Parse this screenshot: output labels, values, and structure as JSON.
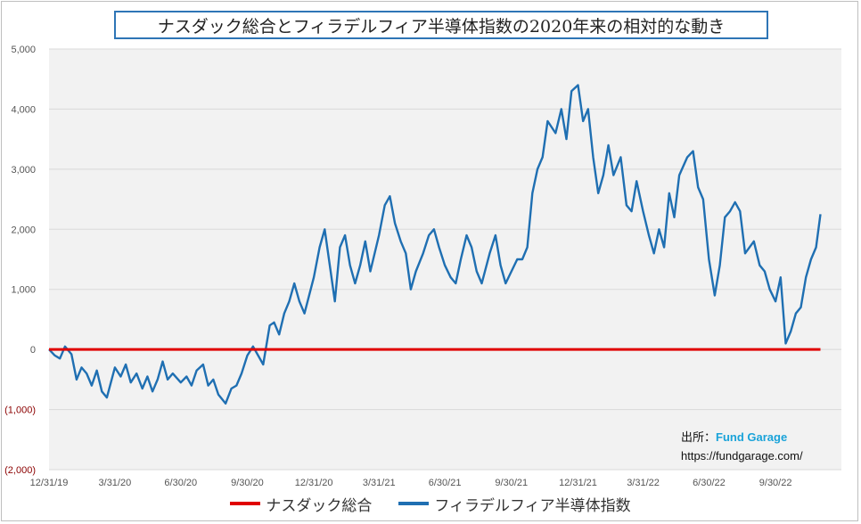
{
  "colors": {
    "nasdaq": "#e00000",
    "sox": "#1f6fb2",
    "plot_bg": "#f2f2f2",
    "grid": "#d9d9d9",
    "title_border": "#2e75b6"
  },
  "source": {
    "label": "出所：",
    "brand": "Fund Garage",
    "url": "https://fundgarage.com/"
  },
  "chart_data": {
    "type": "line",
    "title": "ナスダック総合とフィラデルフィア半導体指数の2020年来の相対的な動き",
    "xlabel": "",
    "ylabel": "",
    "ylim": [
      -2000,
      5000
    ],
    "y_ticks": [
      5000,
      4000,
      3000,
      2000,
      1000,
      0,
      -1000,
      -2000
    ],
    "y_tick_labels": [
      "5,000",
      "4,000",
      "3,000",
      "2,000",
      "1,000",
      "0",
      "(1,000)",
      "(2,000)"
    ],
    "x_tick_labels": [
      "12/31/19",
      "3/31/20",
      "6/30/20",
      "9/30/20",
      "12/31/20",
      "3/31/21",
      "6/30/21",
      "9/30/21",
      "12/31/21",
      "3/31/22",
      "6/30/22",
      "9/30/22"
    ],
    "xlim": [
      "2019-12-31",
      "2022-12-30"
    ],
    "legend": "bottom",
    "grid": true,
    "series": [
      {
        "name": "ナスダック総合",
        "points": [
          [
            "2019-12-31",
            0
          ],
          [
            "2022-12-01",
            0
          ]
        ]
      },
      {
        "name": "フィラデルフィア半導体指数",
        "points": [
          [
            "2019-12-31",
            0
          ],
          [
            "2020-01-08",
            -100
          ],
          [
            "2020-01-15",
            -150
          ],
          [
            "2020-01-22",
            50
          ],
          [
            "2020-01-31",
            -80
          ],
          [
            "2020-02-07",
            -500
          ],
          [
            "2020-02-14",
            -300
          ],
          [
            "2020-02-21",
            -400
          ],
          [
            "2020-02-28",
            -600
          ],
          [
            "2020-03-06",
            -350
          ],
          [
            "2020-03-13",
            -700
          ],
          [
            "2020-03-20",
            -800
          ],
          [
            "2020-03-31",
            -300
          ],
          [
            "2020-04-08",
            -450
          ],
          [
            "2020-04-15",
            -250
          ],
          [
            "2020-04-22",
            -550
          ],
          [
            "2020-04-30",
            -400
          ],
          [
            "2020-05-08",
            -650
          ],
          [
            "2020-05-15",
            -450
          ],
          [
            "2020-05-22",
            -700
          ],
          [
            "2020-05-29",
            -500
          ],
          [
            "2020-06-05",
            -200
          ],
          [
            "2020-06-12",
            -500
          ],
          [
            "2020-06-19",
            -400
          ],
          [
            "2020-06-30",
            -550
          ],
          [
            "2020-07-08",
            -450
          ],
          [
            "2020-07-15",
            -600
          ],
          [
            "2020-07-22",
            -350
          ],
          [
            "2020-07-31",
            -250
          ],
          [
            "2020-08-07",
            -600
          ],
          [
            "2020-08-14",
            -500
          ],
          [
            "2020-08-21",
            -750
          ],
          [
            "2020-08-31",
            -900
          ],
          [
            "2020-09-08",
            -650
          ],
          [
            "2020-09-15",
            -600
          ],
          [
            "2020-09-22",
            -400
          ],
          [
            "2020-09-30",
            -100
          ],
          [
            "2020-10-08",
            50
          ],
          [
            "2020-10-15",
            -100
          ],
          [
            "2020-10-22",
            -250
          ],
          [
            "2020-10-31",
            400
          ],
          [
            "2020-11-06",
            450
          ],
          [
            "2020-11-13",
            250
          ],
          [
            "2020-11-20",
            600
          ],
          [
            "2020-11-27",
            800
          ],
          [
            "2020-12-04",
            1100
          ],
          [
            "2020-12-11",
            800
          ],
          [
            "2020-12-18",
            600
          ],
          [
            "2020-12-31",
            1200
          ],
          [
            "2021-01-08",
            1700
          ],
          [
            "2021-01-15",
            2000
          ],
          [
            "2021-01-22",
            1400
          ],
          [
            "2021-01-29",
            800
          ],
          [
            "2021-02-05",
            1700
          ],
          [
            "2021-02-12",
            1900
          ],
          [
            "2021-02-19",
            1400
          ],
          [
            "2021-02-26",
            1100
          ],
          [
            "2021-03-05",
            1400
          ],
          [
            "2021-03-12",
            1800
          ],
          [
            "2021-03-19",
            1300
          ],
          [
            "2021-03-31",
            1900
          ],
          [
            "2021-04-08",
            2400
          ],
          [
            "2021-04-15",
            2550
          ],
          [
            "2021-04-22",
            2100
          ],
          [
            "2021-04-30",
            1800
          ],
          [
            "2021-05-07",
            1600
          ],
          [
            "2021-05-14",
            1000
          ],
          [
            "2021-05-21",
            1300
          ],
          [
            "2021-05-31",
            1600
          ],
          [
            "2021-06-08",
            1900
          ],
          [
            "2021-06-15",
            2000
          ],
          [
            "2021-06-22",
            1700
          ],
          [
            "2021-06-30",
            1400
          ],
          [
            "2021-07-08",
            1200
          ],
          [
            "2021-07-15",
            1100
          ],
          [
            "2021-07-22",
            1500
          ],
          [
            "2021-07-30",
            1900
          ],
          [
            "2021-08-06",
            1700
          ],
          [
            "2021-08-13",
            1300
          ],
          [
            "2021-08-20",
            1100
          ],
          [
            "2021-08-31",
            1600
          ],
          [
            "2021-09-08",
            1900
          ],
          [
            "2021-09-15",
            1400
          ],
          [
            "2021-09-22",
            1100
          ],
          [
            "2021-09-30",
            1300
          ],
          [
            "2021-10-08",
            1500
          ],
          [
            "2021-10-15",
            1500
          ],
          [
            "2021-10-22",
            1700
          ],
          [
            "2021-10-29",
            2600
          ],
          [
            "2021-11-05",
            3000
          ],
          [
            "2021-11-12",
            3200
          ],
          [
            "2021-11-19",
            3800
          ],
          [
            "2021-11-30",
            3600
          ],
          [
            "2021-12-08",
            4000
          ],
          [
            "2021-12-15",
            3500
          ],
          [
            "2021-12-22",
            4300
          ],
          [
            "2021-12-31",
            4400
          ],
          [
            "2022-01-07",
            3800
          ],
          [
            "2022-01-14",
            4000
          ],
          [
            "2022-01-21",
            3200
          ],
          [
            "2022-01-28",
            2600
          ],
          [
            "2022-02-04",
            2900
          ],
          [
            "2022-02-11",
            3400
          ],
          [
            "2022-02-18",
            2900
          ],
          [
            "2022-02-28",
            3200
          ],
          [
            "2022-03-08",
            2400
          ],
          [
            "2022-03-15",
            2300
          ],
          [
            "2022-03-22",
            2800
          ],
          [
            "2022-03-31",
            2300
          ],
          [
            "2022-04-08",
            1900
          ],
          [
            "2022-04-15",
            1600
          ],
          [
            "2022-04-22",
            2000
          ],
          [
            "2022-04-29",
            1700
          ],
          [
            "2022-05-06",
            2600
          ],
          [
            "2022-05-13",
            2200
          ],
          [
            "2022-05-20",
            2900
          ],
          [
            "2022-05-31",
            3200
          ],
          [
            "2022-06-08",
            3300
          ],
          [
            "2022-06-15",
            2700
          ],
          [
            "2022-06-22",
            2500
          ],
          [
            "2022-06-30",
            1500
          ],
          [
            "2022-07-08",
            900
          ],
          [
            "2022-07-15",
            1400
          ],
          [
            "2022-07-22",
            2200
          ],
          [
            "2022-07-29",
            2300
          ],
          [
            "2022-08-05",
            2450
          ],
          [
            "2022-08-12",
            2300
          ],
          [
            "2022-08-19",
            1600
          ],
          [
            "2022-08-31",
            1800
          ],
          [
            "2022-09-08",
            1400
          ],
          [
            "2022-09-15",
            1300
          ],
          [
            "2022-09-22",
            1000
          ],
          [
            "2022-09-30",
            800
          ],
          [
            "2022-10-07",
            1200
          ],
          [
            "2022-10-14",
            100
          ],
          [
            "2022-10-21",
            300
          ],
          [
            "2022-10-28",
            600
          ],
          [
            "2022-11-04",
            700
          ],
          [
            "2022-11-11",
            1200
          ],
          [
            "2022-11-18",
            1500
          ],
          [
            "2022-11-25",
            1700
          ],
          [
            "2022-12-01",
            2250
          ]
        ]
      }
    ]
  }
}
